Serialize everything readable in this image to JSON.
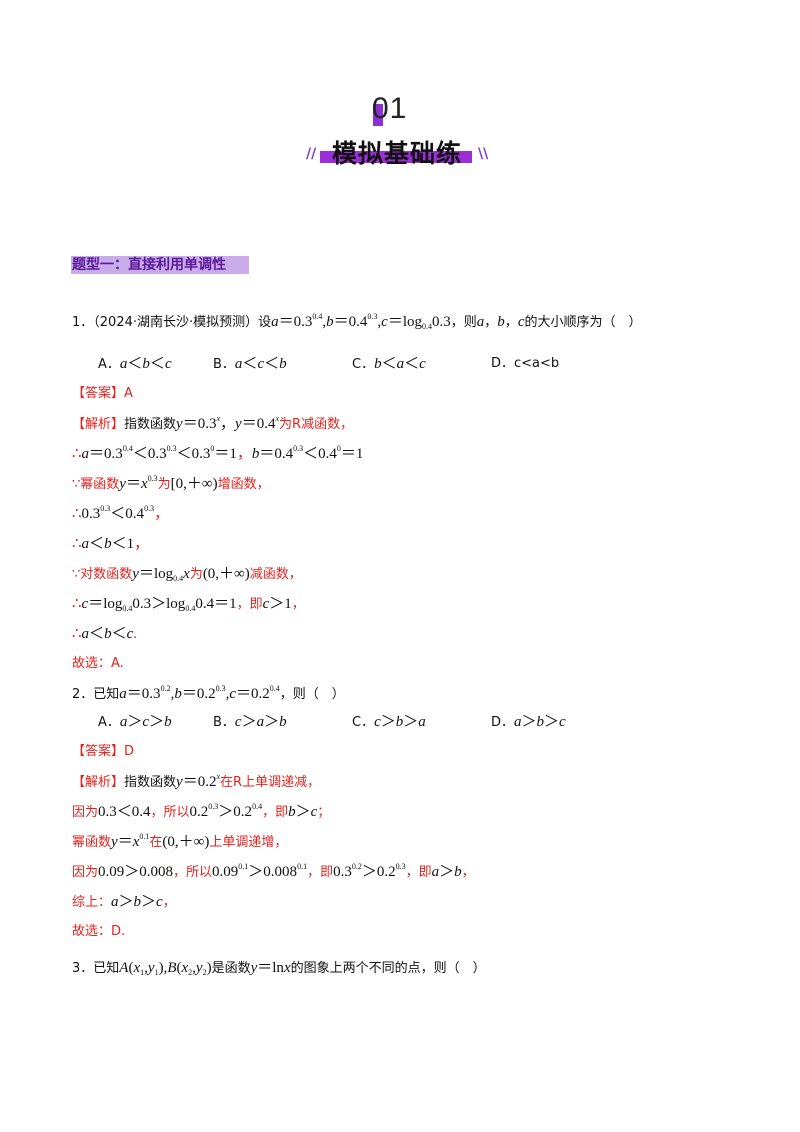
{
  "header": {
    "number": "01",
    "title": "模拟基础练",
    "slash_left": "//",
    "slash_right": "\\\\"
  },
  "section": {
    "title": "题型一：直接利用单调性"
  },
  "q1": {
    "num": "1．",
    "source": "（2024·湖南长沙·模拟预测）设",
    "tail": "，则",
    "tail2": "的大小顺序为（　）",
    "options": {
      "A": "A．",
      "B": "B．",
      "C": "C．",
      "D": "D．",
      "D_text": "c<a<b"
    },
    "answer": "【答案】A",
    "analysis_label": "【解析】",
    "l1a": "指数函数",
    "l1b": "为R减函数，",
    "l3a": "∵幂函数",
    "l3b": "为",
    "l3c": "增函数，",
    "l6a": "∵对数函数",
    "l6b": "为",
    "l6c": "减函数，",
    "l7a": "即",
    "conclusion": "故选：A."
  },
  "q2": {
    "num": "2．",
    "lead": "已知",
    "tail": "，则（　）",
    "options": {
      "A": "A．",
      "B": "B．",
      "C": "C．",
      "D": "D．"
    },
    "answer": "【答案】D",
    "analysis_label": "【解析】",
    "l1a": "指数函数",
    "l1b": "在R上单调递减，",
    "l2a": "因为",
    "l2b": "，所以",
    "l2c": "，即",
    "l3a": "幂函数",
    "l3b": "在",
    "l3c": "上单调递增，",
    "l4a": "因为",
    "l4b": "，所以",
    "l4c": "，即",
    "l4d": "，即",
    "l5a": "综上：",
    "conclusion": "故选：D."
  },
  "q3": {
    "num": "3．",
    "lead": "已知",
    "mid": "是函数",
    "tail": "的图象上两个不同的点，则（　）"
  }
}
